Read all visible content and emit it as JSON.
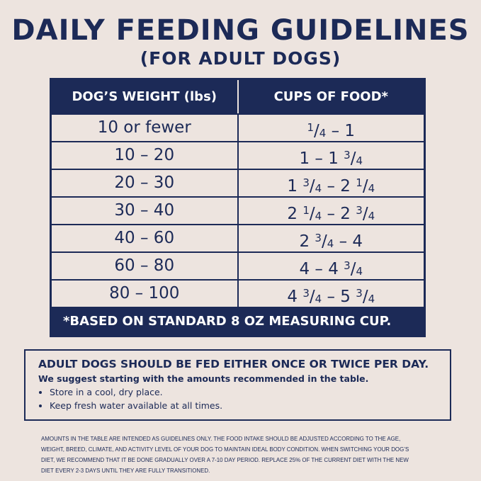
{
  "title": "DAILY FEEDING GUIDELINES",
  "subtitle": "(FOR ADULT DOGS)",
  "table": {
    "headers": [
      "DOG’S WEIGHT (lbs)",
      "CUPS OF FOOD*"
    ],
    "rows": [
      [
        "10 or fewer",
        "1/4 – 1"
      ],
      [
        "10 – 20",
        "1 – 1 3/4"
      ],
      [
        "20 – 30",
        "1 3/4 – 2 1/4"
      ],
      [
        "30 – 40",
        "2 1/4 – 2 3/4"
      ],
      [
        "40 – 60",
        "2 3/4 – 4"
      ],
      [
        "60 – 80",
        "4 – 4 3/4"
      ],
      [
        "80 – 100",
        "4 3/4 – 5 3/4"
      ]
    ],
    "footnote": "*BASED ON STANDARD 8 OZ MEASURING CUP."
  },
  "note": {
    "heading": "ADULT DOGS SHOULD BE FED EITHER ONCE OR TWICE PER DAY.",
    "intro": "We suggest starting with the amounts recommended in the table.",
    "bullets": [
      "Store in a cool, dry place.",
      "Keep fresh water available at all times."
    ]
  },
  "disclaimer": "Amounts in the table are intended as guidelines only. The food intake should be adjusted according to the age, weight, breed, climate, and activity level of your dog to maintain ideal body condition. When switching your dog’s diet, we recommend that it be done gradually over a 7-10 day period. Replace 25% of the current diet with the new diet every 2-3 days until they are fully transitioned.",
  "colors": {
    "navy": "#1c2a57",
    "background": "#ede4df"
  }
}
